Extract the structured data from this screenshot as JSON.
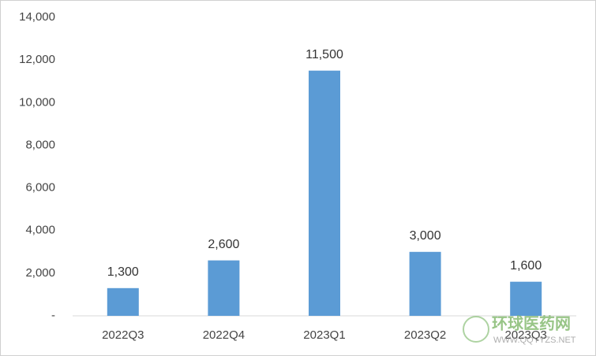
{
  "chart_data": {
    "type": "bar",
    "categories": [
      "2022Q3",
      "2022Q4",
      "2023Q1",
      "2023Q2",
      "2023Q3"
    ],
    "values": [
      1300,
      2600,
      11500,
      3000,
      1600
    ],
    "value_labels": [
      "1,300",
      "2,600",
      "11,500",
      "3,000",
      "1,600"
    ],
    "color": "#5b9bd5",
    "ylim": [
      0,
      14000
    ],
    "yticks": [
      {
        "value": 0,
        "label": "-"
      },
      {
        "value": 2000,
        "label": "2,000"
      },
      {
        "value": 4000,
        "label": "4,000"
      },
      {
        "value": 6000,
        "label": "6,000"
      },
      {
        "value": 8000,
        "label": "8,000"
      },
      {
        "value": 10000,
        "label": "10,000"
      },
      {
        "value": 12000,
        "label": "12,000"
      },
      {
        "value": 14000,
        "label": "14,000"
      }
    ],
    "grid": false,
    "watermark": "环球医药网",
    "watermark_url": "WWW.QQYYZS.NET"
  }
}
